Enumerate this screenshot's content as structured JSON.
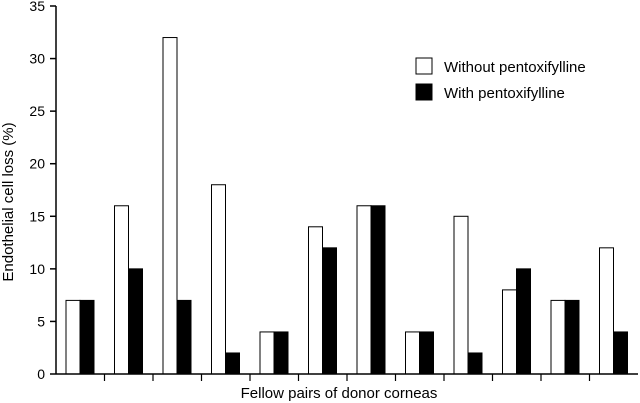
{
  "chart_data": {
    "type": "bar",
    "title": "",
    "xlabel": "Fellow pairs of donor corneas",
    "ylabel": "Endothelial cell loss (%)",
    "ylim": [
      0,
      35
    ],
    "yticks": [
      "0",
      "5",
      "10",
      "15",
      "20",
      "25",
      "30",
      "35"
    ],
    "grid": false,
    "legend": "top-right",
    "categories": [
      "",
      "",
      "",
      "",
      "",
      "",
      "",
      "",
      "",
      "",
      "",
      ""
    ],
    "series": [
      {
        "name": "Without pentoxifylline",
        "fill": "#ffffff",
        "values": [
          7,
          16,
          32,
          18,
          4,
          14,
          16,
          4,
          15,
          8,
          7,
          12
        ]
      },
      {
        "name": "With pentoxifylline",
        "fill": "#000000",
        "values": [
          7,
          10,
          7,
          2,
          4,
          12,
          16,
          4,
          2,
          10,
          7,
          4
        ]
      }
    ]
  }
}
